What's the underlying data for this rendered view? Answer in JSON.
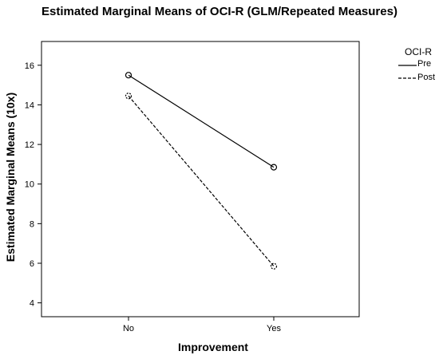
{
  "chart_data": {
    "type": "line",
    "title": "Estimated Marginal Means of OCI-R (GLM/Repeated Measures)",
    "xlabel": "Improvement",
    "ylabel": "Estimated Marginal Means (10x)",
    "categories": [
      "No",
      "Yes"
    ],
    "ylim": [
      3.3,
      17.2
    ],
    "yticks": [
      4,
      6,
      8,
      10,
      12,
      14,
      16
    ],
    "series": [
      {
        "name": "Pre",
        "values": [
          15.5,
          10.85
        ],
        "style": "solid",
        "color": "#000000"
      },
      {
        "name": "Post",
        "values": [
          14.45,
          5.85
        ],
        "style": "dashed",
        "color": "#000000"
      }
    ],
    "legend": {
      "title": "OCI-R",
      "placement": "right"
    },
    "grid": false
  }
}
